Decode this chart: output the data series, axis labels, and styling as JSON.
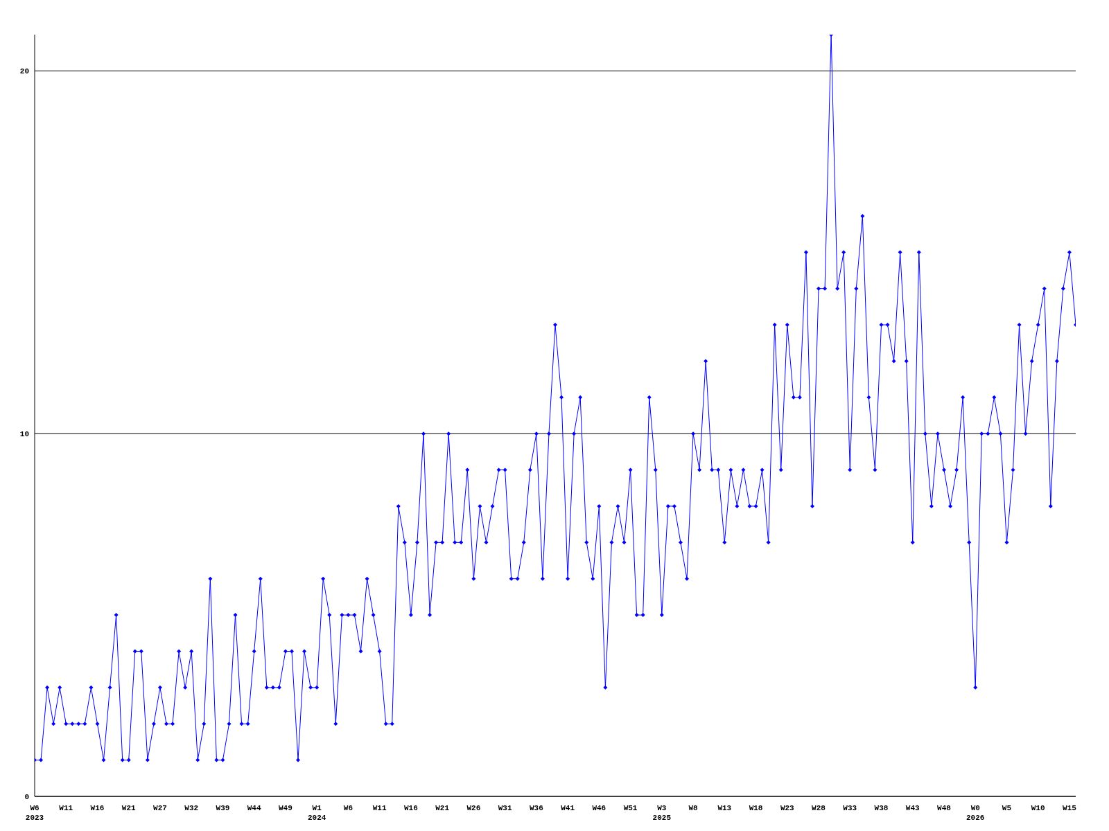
{
  "chart_data": {
    "type": "line",
    "categories": [
      "W6\n2023",
      null,
      null,
      null,
      null,
      "W11",
      null,
      null,
      null,
      null,
      "W16",
      null,
      null,
      null,
      null,
      "W21",
      null,
      null,
      null,
      null,
      "W27",
      null,
      null,
      null,
      null,
      "W32",
      null,
      null,
      null,
      null,
      "W39",
      null,
      null,
      null,
      null,
      "W44",
      null,
      null,
      null,
      null,
      "W49",
      null,
      null,
      null,
      null,
      "W1\n2024",
      null,
      null,
      null,
      null,
      "W6",
      null,
      null,
      null,
      null,
      "W11",
      null,
      null,
      null,
      null,
      "W16",
      null,
      null,
      null,
      null,
      "W21",
      null,
      null,
      null,
      null,
      "W26",
      null,
      null,
      null,
      null,
      "W31",
      null,
      null,
      null,
      null,
      "W36",
      null,
      null,
      null,
      null,
      "W41",
      null,
      null,
      null,
      null,
      "W46",
      null,
      null,
      null,
      null,
      "W51",
      null,
      null,
      null,
      null,
      "W3\n2025",
      null,
      null,
      null,
      null,
      "W8",
      null,
      null,
      null,
      null,
      "W13",
      null,
      null,
      null,
      null,
      "W18",
      null,
      null,
      null,
      null,
      "W23",
      null,
      null,
      null,
      null,
      "W28",
      null,
      null,
      null,
      null,
      "W33",
      null,
      null,
      null,
      null,
      "W38",
      null,
      null,
      null,
      null,
      "W43",
      null,
      null,
      null,
      null,
      "W48",
      null,
      null,
      null,
      null,
      "W0\n2026",
      null,
      null,
      null,
      null,
      "W5",
      null,
      null,
      null,
      null,
      "W10",
      null,
      null,
      null,
      null,
      "W15",
      null
    ],
    "series": [
      {
        "color": "#0000ff",
        "values": [
          1,
          1,
          3,
          2,
          3,
          2,
          2,
          2,
          2,
          3,
          2,
          1,
          3,
          5,
          1,
          1,
          4,
          4,
          1,
          2,
          3,
          2,
          2,
          4,
          3,
          4,
          1,
          2,
          6,
          1,
          1,
          2,
          5,
          2,
          2,
          4,
          6,
          3,
          3,
          3,
          4,
          4,
          1,
          4,
          3,
          3,
          6,
          5,
          2,
          5,
          5,
          5,
          4,
          6,
          5,
          4,
          2,
          2,
          8,
          7,
          5,
          7,
          10,
          5,
          7,
          7,
          10,
          7,
          7,
          9,
          6,
          8,
          7,
          8,
          9,
          9,
          6,
          6,
          7,
          9,
          10,
          6,
          10,
          13,
          11,
          6,
          10,
          11,
          7,
          6,
          8,
          3,
          7,
          8,
          7,
          9,
          5,
          5,
          11,
          9,
          5,
          8,
          8,
          7,
          6,
          10,
          9,
          12,
          9,
          9,
          7,
          9,
          8,
          9,
          8,
          8,
          9,
          7,
          13,
          9,
          13,
          11,
          11,
          15,
          8,
          14,
          14,
          21,
          14,
          15,
          9,
          14,
          16,
          11,
          9,
          13,
          13,
          12,
          15,
          12,
          7,
          15,
          10,
          8,
          10,
          9,
          8,
          9,
          11,
          7,
          3,
          10,
          10,
          11,
          10,
          7,
          9,
          13,
          10,
          12,
          13,
          14,
          8,
          12,
          14,
          15,
          13
        ]
      }
    ],
    "ylim": [
      0,
      21
    ],
    "yticks": [
      0,
      10,
      20
    ],
    "grid": "y",
    "marker": "diamond",
    "line_style": "solid",
    "legend": false
  }
}
